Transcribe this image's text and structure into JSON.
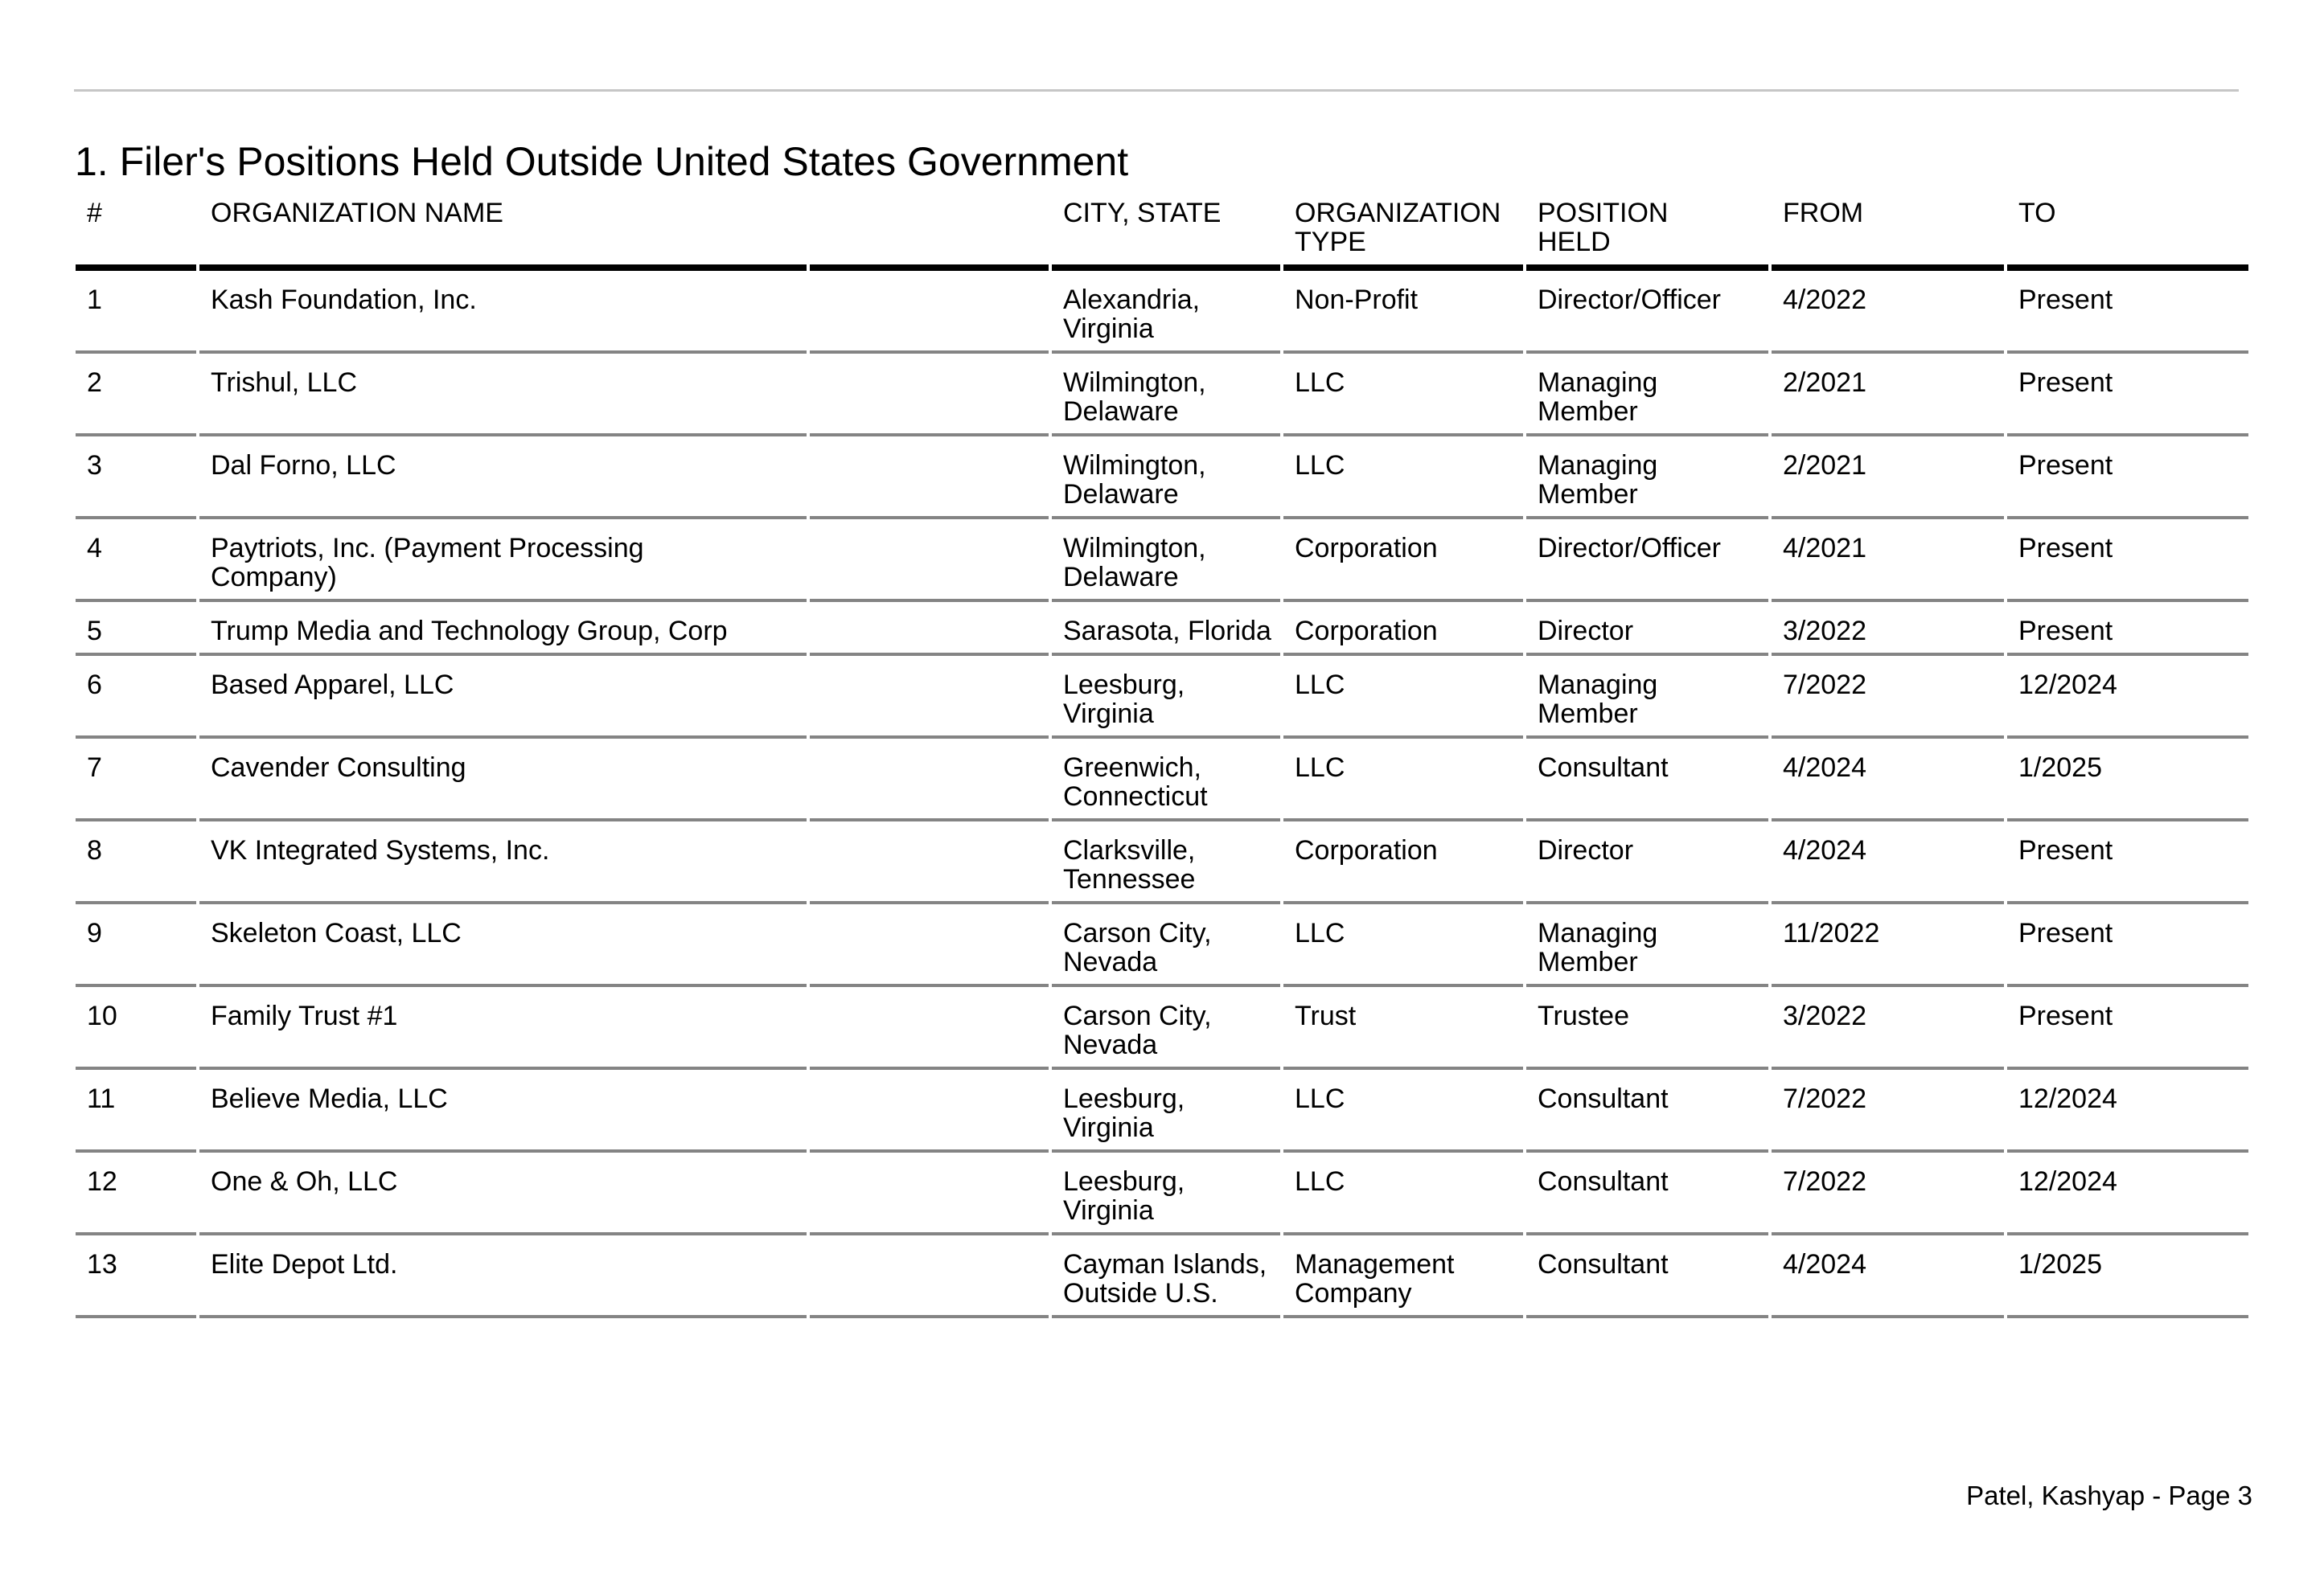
{
  "page": {
    "title": "1. Filer's Positions Held Outside United States Government",
    "footer": "Patel, Kashyap - Page 3"
  },
  "colors": {
    "text": "#000000",
    "background": "#ffffff",
    "top_rule": "#c6c6c6",
    "header_rule": "#000000",
    "row_separator": "#848484"
  },
  "table": {
    "column_keys": [
      "num",
      "organization_name",
      "spacer",
      "city_state",
      "organization_type",
      "position_held",
      "from",
      "to"
    ],
    "columns": [
      {
        "key": "num",
        "label": "#"
      },
      {
        "key": "organization_name",
        "label": "ORGANIZATION NAME"
      },
      {
        "key": "spacer",
        "label": ""
      },
      {
        "key": "city_state",
        "label": "CITY, STATE"
      },
      {
        "key": "organization_type",
        "label": "ORGANIZATION\nTYPE"
      },
      {
        "key": "position_held",
        "label": "POSITION\nHELD"
      },
      {
        "key": "from",
        "label": "FROM"
      },
      {
        "key": "to",
        "label": "TO"
      }
    ],
    "rows": [
      {
        "num": "1",
        "organization_name": "Kash Foundation, Inc.",
        "spacer": "",
        "city_state": "Alexandria,\nVirginia",
        "organization_type": "Non-Profit",
        "position_held": "Director/Officer",
        "from": "4/2022",
        "to": "Present"
      },
      {
        "num": "2",
        "organization_name": "Trishul, LLC",
        "spacer": "",
        "city_state": "Wilmington,\nDelaware",
        "organization_type": "LLC",
        "position_held": "Managing\nMember",
        "from": "2/2021",
        "to": "Present"
      },
      {
        "num": "3",
        "organization_name": "Dal Forno, LLC",
        "spacer": "",
        "city_state": "Wilmington,\nDelaware",
        "organization_type": "LLC",
        "position_held": "Managing\nMember",
        "from": "2/2021",
        "to": "Present"
      },
      {
        "num": "4",
        "organization_name": "Paytriots, Inc. (Payment Processing\nCompany)",
        "spacer": "",
        "city_state": "Wilmington,\nDelaware",
        "organization_type": "Corporation",
        "position_held": "Director/Officer",
        "from": "4/2021",
        "to": "Present"
      },
      {
        "num": "5",
        "organization_name": "Trump Media and Technology Group, Corp",
        "spacer": "",
        "city_state": "Sarasota, Florida",
        "organization_type": "Corporation",
        "position_held": "Director",
        "from": "3/2022",
        "to": "Present"
      },
      {
        "num": "6",
        "organization_name": "Based Apparel, LLC",
        "spacer": "",
        "city_state": "Leesburg,\nVirginia",
        "organization_type": "LLC",
        "position_held": "Managing\nMember",
        "from": "7/2022",
        "to": "12/2024"
      },
      {
        "num": "7",
        "organization_name": "Cavender Consulting",
        "spacer": "",
        "city_state": "Greenwich,\nConnecticut",
        "organization_type": "LLC",
        "position_held": "Consultant",
        "from": "4/2024",
        "to": "1/2025"
      },
      {
        "num": "8",
        "organization_name": "VK Integrated Systems, Inc.",
        "spacer": "",
        "city_state": "Clarksville,\nTennessee",
        "organization_type": "Corporation",
        "position_held": "Director",
        "from": "4/2024",
        "to": "Present"
      },
      {
        "num": "9",
        "organization_name": "Skeleton Coast, LLC",
        "spacer": "",
        "city_state": "Carson City,\nNevada",
        "organization_type": "LLC",
        "position_held": "Managing\nMember",
        "from": "11/2022",
        "to": "Present"
      },
      {
        "num": "10",
        "organization_name": "Family Trust #1",
        "spacer": "",
        "city_state": "Carson City,\nNevada",
        "organization_type": "Trust",
        "position_held": "Trustee",
        "from": "3/2022",
        "to": "Present"
      },
      {
        "num": "11",
        "organization_name": "Believe Media, LLC",
        "spacer": "",
        "city_state": "Leesburg,\nVirginia",
        "organization_type": "LLC",
        "position_held": "Consultant",
        "from": "7/2022",
        "to": "12/2024"
      },
      {
        "num": "12",
        "organization_name": "One & Oh, LLC",
        "spacer": "",
        "city_state": "Leesburg,\nVirginia",
        "organization_type": "LLC",
        "position_held": "Consultant",
        "from": "7/2022",
        "to": "12/2024"
      },
      {
        "num": "13",
        "organization_name": "Elite Depot Ltd.",
        "spacer": "",
        "city_state": "Cayman Islands,\nOutside U.S.",
        "organization_type": "Management\nCompany",
        "position_held": "Consultant",
        "from": "4/2024",
        "to": "1/2025"
      }
    ]
  }
}
